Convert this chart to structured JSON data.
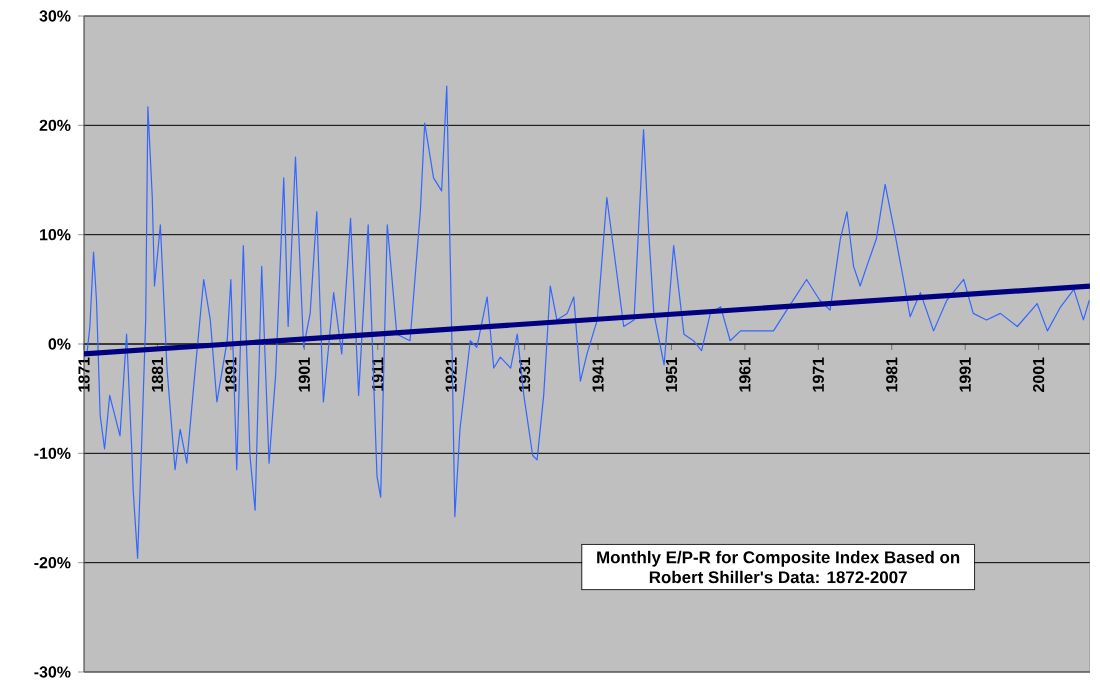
{
  "chart_data": {
    "type": "line",
    "xlim": [
      1871,
      2008
    ],
    "ylim": [
      -30,
      30
    ],
    "xticks": [
      1871,
      1881,
      1891,
      1901,
      1911,
      1921,
      1931,
      1941,
      1951,
      1961,
      1971,
      1981,
      1991,
      2001
    ],
    "yticks": [
      {
        "value": -30,
        "label": "-30%"
      },
      {
        "value": -20,
        "label": "-20%"
      },
      {
        "value": -10,
        "label": "-10%"
      },
      {
        "value": 0,
        "label": "0%"
      },
      {
        "value": 10,
        "label": "10%"
      },
      {
        "value": 20,
        "label": "20%"
      },
      {
        "value": 30,
        "label": "30%"
      }
    ],
    "grid": "y",
    "annotations": [
      "Monthly E/P-R for Composite Index Based on Robert Shiller's Data: 1872-2007"
    ],
    "series": [
      {
        "color": "#3366ff",
        "x": [
          1871.4,
          1871.8,
          1872.3,
          1872.7,
          1873.2,
          1873.8,
          1874.5,
          1875.9,
          1876.8,
          1877.5,
          1877.7,
          1878.3,
          1878.8,
          1879.4,
          1879.7,
          1880.3,
          1880.6,
          1881.4,
          1882.3,
          1883.4,
          1884.1,
          1885,
          1886,
          1887.3,
          1888.2,
          1889.1,
          1890.5,
          1891,
          1891.8,
          1892.7,
          1893.6,
          1894.3,
          1895.2,
          1896.2,
          1897.1,
          1898.2,
          1898.8,
          1899.8,
          1900.9,
          1901.8,
          1902.7,
          1903.6,
          1905,
          1906.1,
          1907.3,
          1908.4,
          1909.7,
          1910.9,
          1911.4,
          1912.3,
          1913.6,
          1915.4,
          1916.8,
          1917.4,
          1918.6,
          1919.7,
          1920.4,
          1921.1,
          1921.5,
          1922.2,
          1923.6,
          1924.5,
          1925.9,
          1926.8,
          1927.7,
          1929.1,
          1930,
          1930.9,
          1932.1,
          1932.7,
          1933.6,
          1934.5,
          1935.4,
          1936.8,
          1937.7,
          1938.6,
          1939.5,
          1940.9,
          1942.2,
          1943.3,
          1944.5,
          1945.9,
          1947.2,
          1947.9,
          1948.6,
          1950,
          1951.3,
          1952.7,
          1954,
          1955.1,
          1956.3,
          1957.7,
          1959,
          1960.4,
          1962.2,
          1964.9,
          1966.7,
          1969.4,
          1971.2,
          1972.6,
          1974,
          1974.9,
          1975.8,
          1976.7,
          1977.6,
          1978.9,
          1980.1,
          1981.4,
          1982.6,
          1983.5,
          1984.9,
          1986.7,
          1988.5,
          1990.8,
          1992.1,
          1993.9,
          1995.8,
          1998.1,
          2000.8,
          2002.2,
          2004,
          2005.8,
          2007.1,
          2007.9
        ],
        "values": [
          -0.9,
          1.6,
          8.4,
          4.0,
          -6.5,
          -9.6,
          -4.7,
          -8.4,
          0.9,
          -9.6,
          -13.4,
          -19.6,
          -10.2,
          2.2,
          21.7,
          13.4,
          5.3,
          10.9,
          -2.2,
          -11.5,
          -7.8,
          -10.9,
          -3.4,
          5.9,
          2.2,
          -5.3,
          0.3,
          5.9,
          -11.5,
          9.0,
          -10.2,
          -15.2,
          7.1,
          -10.9,
          -2.8,
          15.2,
          1.6,
          17.1,
          -0.3,
          2.8,
          12.1,
          -5.3,
          4.7,
          -0.9,
          11.5,
          -4.7,
          10.9,
          -12.1,
          -14.0,
          10.9,
          0.9,
          0.3,
          12.1,
          20.2,
          15.2,
          14.0,
          23.6,
          0.3,
          -15.8,
          -7.8,
          0.3,
          -0.3,
          4.3,
          -2.2,
          -1.2,
          -2.2,
          0.9,
          -4.7,
          -10.2,
          -10.6,
          -4.7,
          5.3,
          2.2,
          2.8,
          4.3,
          -3.4,
          -0.9,
          2.2,
          13.4,
          7.8,
          1.6,
          2.2,
          19.6,
          10.2,
          2.8,
          -1.9,
          9.0,
          0.9,
          0.3,
          -0.6,
          2.8,
          3.4,
          0.3,
          1.2,
          1.2,
          1.2,
          3.1,
          5.9,
          4.0,
          3.1,
          9.6,
          12.1,
          7.1,
          5.3,
          7.1,
          9.6,
          14.6,
          10.2,
          5.9,
          2.5,
          4.7,
          1.2,
          4.0,
          5.9,
          2.8,
          2.2,
          2.8,
          1.6,
          3.7,
          1.2,
          3.4,
          5.0,
          2.2,
          4.0
        ]
      },
      {
        "color": "#000080",
        "x": [
          1871,
          2008
        ],
        "values": [
          -0.9,
          5.3
        ]
      }
    ]
  }
}
